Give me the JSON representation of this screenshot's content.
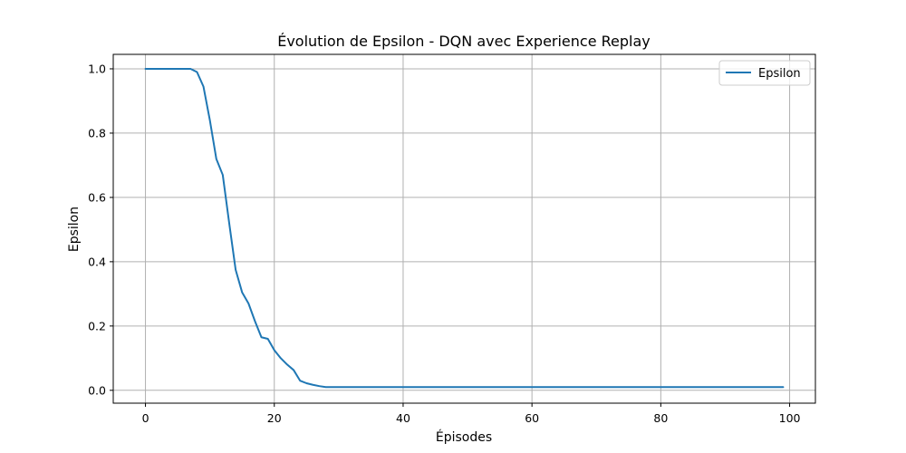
{
  "chart_data": {
    "type": "line",
    "title": "Évolution de Epsilon - DQN avec Experience Replay",
    "xlabel": "Épisodes",
    "ylabel": "Epsilon",
    "xlim": [
      -5,
      104
    ],
    "ylim": [
      -0.04,
      1.045
    ],
    "xticks": [
      0,
      20,
      40,
      60,
      80,
      100
    ],
    "yticks": [
      0.0,
      0.2,
      0.4,
      0.6,
      0.8,
      1.0
    ],
    "xtick_labels": [
      "0",
      "20",
      "40",
      "60",
      "80",
      "100"
    ],
    "ytick_labels": [
      "0.0",
      "0.2",
      "0.4",
      "0.6",
      "0.8",
      "1.0"
    ],
    "grid": true,
    "legend_position": "top-right",
    "series": [
      {
        "name": "Epsilon",
        "color": "#1f77b4",
        "x": [
          0,
          1,
          2,
          3,
          4,
          5,
          6,
          7,
          8,
          9,
          10,
          11,
          12,
          13,
          14,
          15,
          16,
          17,
          18,
          19,
          20,
          21,
          22,
          23,
          24,
          25,
          26,
          27,
          28,
          29,
          30,
          31,
          32,
          33,
          34,
          35,
          36,
          37,
          38,
          39,
          40,
          41,
          42,
          43,
          44,
          45,
          46,
          47,
          48,
          49,
          50,
          51,
          52,
          53,
          54,
          55,
          56,
          57,
          58,
          59,
          60,
          61,
          62,
          63,
          64,
          65,
          66,
          67,
          68,
          69,
          70,
          71,
          72,
          73,
          74,
          75,
          76,
          77,
          78,
          79,
          80,
          81,
          82,
          83,
          84,
          85,
          86,
          87,
          88,
          89,
          90,
          91,
          92,
          93,
          94,
          95,
          96,
          97,
          98,
          99
        ],
        "values": [
          1.0,
          1.0,
          1.0,
          1.0,
          1.0,
          1.0,
          1.0,
          1.0,
          0.99,
          0.945,
          0.84,
          0.72,
          0.67,
          0.52,
          0.375,
          0.305,
          0.27,
          0.215,
          0.165,
          0.16,
          0.125,
          0.1,
          0.08,
          0.063,
          0.03,
          0.022,
          0.017,
          0.013,
          0.01,
          0.01,
          0.01,
          0.01,
          0.01,
          0.01,
          0.01,
          0.01,
          0.01,
          0.01,
          0.01,
          0.01,
          0.01,
          0.01,
          0.01,
          0.01,
          0.01,
          0.01,
          0.01,
          0.01,
          0.01,
          0.01,
          0.01,
          0.01,
          0.01,
          0.01,
          0.01,
          0.01,
          0.01,
          0.01,
          0.01,
          0.01,
          0.01,
          0.01,
          0.01,
          0.01,
          0.01,
          0.01,
          0.01,
          0.01,
          0.01,
          0.01,
          0.01,
          0.01,
          0.01,
          0.01,
          0.01,
          0.01,
          0.01,
          0.01,
          0.01,
          0.01,
          0.01,
          0.01,
          0.01,
          0.01,
          0.01,
          0.01,
          0.01,
          0.01,
          0.01,
          0.01,
          0.01,
          0.01,
          0.01,
          0.01,
          0.01,
          0.01,
          0.01,
          0.01,
          0.01,
          0.01
        ]
      }
    ]
  }
}
